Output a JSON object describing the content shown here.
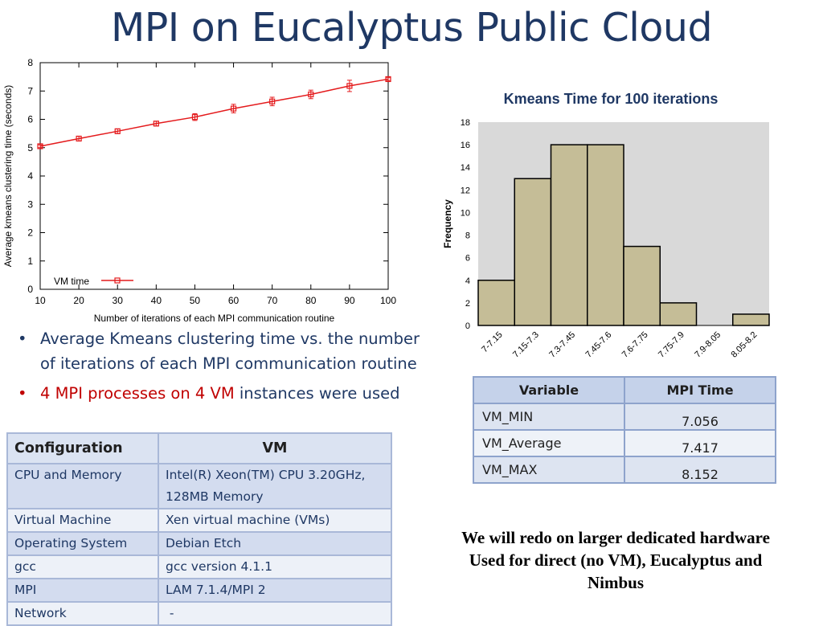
{
  "slide": {
    "title": "MPI on Eucalyptus Public Cloud",
    "bullets": [
      {
        "text": "Average Kmeans clustering time vs. the number of iterations of each MPI communication routine"
      },
      {
        "red_text": "4 MPI processes on 4 VM",
        "rest_text": " instances were used"
      }
    ],
    "bullet_glyph": "•",
    "note_lines": [
      "We will redo on larger dedicated hardware",
      "Used for direct (no VM), Eucalyptus and",
      "Nimbus"
    ]
  },
  "config_table": {
    "headers": [
      "Configuration",
      "VM"
    ],
    "rows": [
      {
        "label": "CPU and Memory",
        "value_lines": [
          "Intel(R) Xeon(TM) CPU 3.20GHz,",
          "128MB Memory"
        ]
      },
      {
        "label": "Virtual Machine",
        "value_lines": [
          "Xen virtual machine (VMs)"
        ]
      },
      {
        "label": "Operating System",
        "value_lines": [
          "Debian Etch"
        ]
      },
      {
        "label": "gcc",
        "value_lines": [
          "gcc version 4.1.1"
        ]
      },
      {
        "label": "MPI",
        "value_lines": [
          "LAM 7.1.4/MPI 2"
        ]
      },
      {
        "label": "Network",
        "value_lines": [
          " -"
        ]
      }
    ]
  },
  "mpi_table": {
    "headers": [
      "Variable",
      "MPI Time"
    ],
    "rows": [
      {
        "variable": "VM_MIN",
        "value": "7.056"
      },
      {
        "variable": "VM_Average",
        "value": "7.417"
      },
      {
        "variable": "VM_MAX",
        "value": "8.152"
      }
    ]
  },
  "chart_data": [
    {
      "type": "line",
      "title": "",
      "xlabel": "Number of iterations of each MPI communication routine",
      "ylabel": "Average kmeans clustering time (seconds)",
      "x": [
        10,
        20,
        30,
        40,
        50,
        60,
        70,
        80,
        90,
        100
      ],
      "xlim": [
        10,
        100
      ],
      "ylim": [
        0,
        8
      ],
      "xticks": [
        10,
        20,
        30,
        40,
        50,
        60,
        70,
        80,
        90,
        100
      ],
      "yticks": [
        0,
        1,
        2,
        3,
        4,
        5,
        6,
        7,
        8
      ],
      "series": [
        {
          "name": "VM time",
          "values": [
            5.05,
            5.32,
            5.58,
            5.85,
            6.08,
            6.38,
            6.63,
            6.88,
            7.18,
            7.42
          ],
          "errors": [
            0.05,
            0.08,
            0.08,
            0.08,
            0.12,
            0.15,
            0.15,
            0.15,
            0.2,
            0.05
          ]
        }
      ],
      "legend": "bottom-left",
      "grid": false,
      "color": "#e41a1c"
    },
    {
      "type": "bar",
      "title": "Kmeans Time for 100 iterations",
      "xlabel": "",
      "ylabel": "Frequency",
      "categories": [
        "7-7.15",
        "7.15-7.3",
        "7.3-7.45",
        "7.45-7.6",
        "7.6-7.75",
        "7.75-7.9",
        "7.9-8.05",
        "8.05-8.2"
      ],
      "values": [
        4,
        13,
        16,
        16,
        7,
        2,
        0,
        1
      ],
      "ylim": [
        0,
        18
      ],
      "yticks": [
        0,
        2,
        4,
        6,
        8,
        10,
        12,
        14,
        16,
        18
      ],
      "grid": false,
      "bar_color": "#c5bd97",
      "plot_background": "#d9d9d9"
    }
  ]
}
